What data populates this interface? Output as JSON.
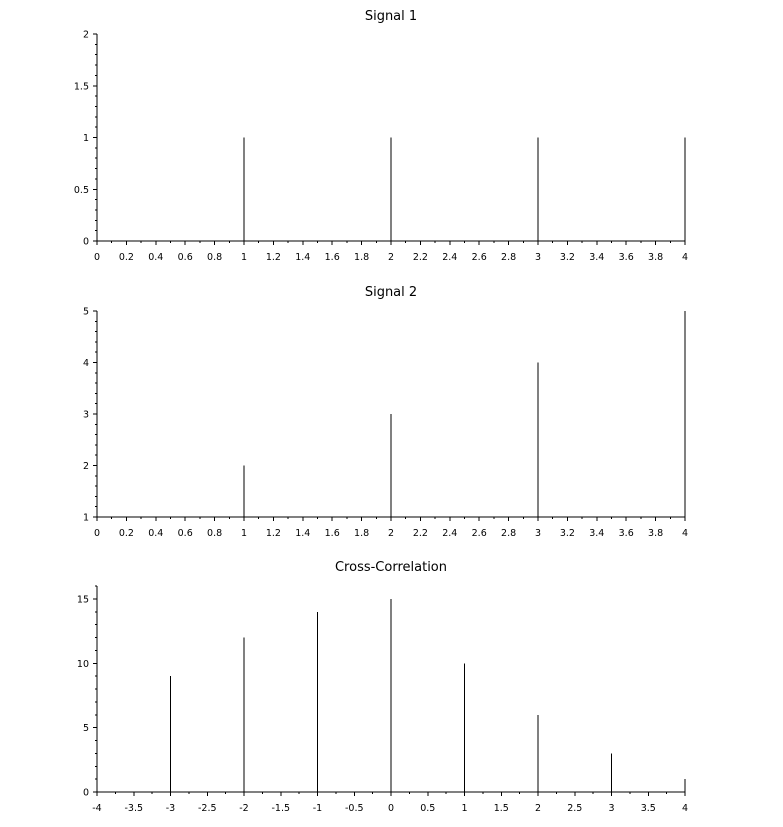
{
  "chart_data": [
    {
      "type": "stem",
      "title": "Signal 1",
      "xlabel": "",
      "ylabel": "",
      "x": [
        0,
        1,
        2,
        3,
        4
      ],
      "values": [
        0,
        1,
        1,
        1,
        1
      ],
      "xlim": [
        0,
        4
      ],
      "ylim": [
        0,
        2
      ],
      "xticks": [
        0,
        0.2,
        0.4,
        0.6,
        0.8,
        1,
        1.2,
        1.4,
        1.6,
        1.8,
        2,
        2.2,
        2.4,
        2.6,
        2.8,
        3,
        3.2,
        3.4,
        3.6,
        3.8,
        4
      ],
      "xtick_labels": [
        "0",
        "0.2",
        "0.4",
        "0.6",
        "0.8",
        "1",
        "1.2",
        "1.4",
        "1.6",
        "1.8",
        "2",
        "2.2",
        "2.4",
        "2.6",
        "2.8",
        "3",
        "3.2",
        "3.4",
        "3.6",
        "3.8",
        "4"
      ],
      "yticks": [
        0,
        0.5,
        1,
        1.5,
        2
      ],
      "ytick_labels": [
        "0",
        "0.5",
        "1",
        "1.5",
        "2"
      ],
      "grid": false
    },
    {
      "type": "stem",
      "title": "Signal 2",
      "xlabel": "",
      "ylabel": "",
      "x": [
        0,
        1,
        2,
        3,
        4
      ],
      "values": [
        1,
        2,
        3,
        4,
        5
      ],
      "xlim": [
        0,
        4
      ],
      "ylim": [
        1,
        5
      ],
      "xticks": [
        0,
        0.2,
        0.4,
        0.6,
        0.8,
        1,
        1.2,
        1.4,
        1.6,
        1.8,
        2,
        2.2,
        2.4,
        2.6,
        2.8,
        3,
        3.2,
        3.4,
        3.6,
        3.8,
        4
      ],
      "xtick_labels": [
        "0",
        "0.2",
        "0.4",
        "0.6",
        "0.8",
        "1",
        "1.2",
        "1.4",
        "1.6",
        "1.8",
        "2",
        "2.2",
        "2.4",
        "2.6",
        "2.8",
        "3",
        "3.2",
        "3.4",
        "3.6",
        "3.8",
        "4"
      ],
      "yticks": [
        1,
        2,
        3,
        4,
        5
      ],
      "ytick_labels": [
        "1",
        "2",
        "3",
        "4",
        "5"
      ],
      "grid": false
    },
    {
      "type": "stem",
      "title": "Cross-Correlation",
      "xlabel": "",
      "ylabel": "",
      "x": [
        -4,
        -3,
        -2,
        -1,
        0,
        1,
        2,
        3,
        4
      ],
      "values": [
        0,
        9,
        12,
        14,
        15,
        10,
        6,
        3,
        1
      ],
      "xlim": [
        -4,
        4
      ],
      "ylim": [
        0,
        16
      ],
      "xticks": [
        -4,
        -3.5,
        -3,
        -2.5,
        -2,
        -1.5,
        -1,
        -0.5,
        0,
        0.5,
        1,
        1.5,
        2,
        2.5,
        3,
        3.5,
        4
      ],
      "xtick_labels": [
        "-4",
        "-3.5",
        "-3",
        "-2.5",
        "-2",
        "-1.5",
        "-1",
        "-0.5",
        "0",
        "0.5",
        "1",
        "1.5",
        "2",
        "2.5",
        "3",
        "3.5",
        "4"
      ],
      "yticks": [
        0,
        5,
        10,
        15
      ],
      "ytick_labels": [
        "0",
        "5",
        "10",
        "15"
      ],
      "grid": false
    }
  ]
}
